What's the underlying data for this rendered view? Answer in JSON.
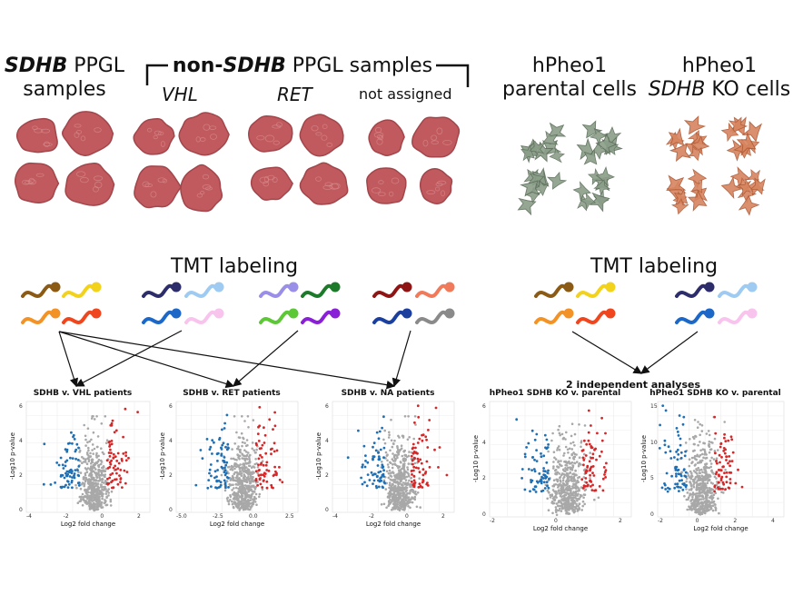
{
  "headers": {
    "sdhb_gene": "SDHB",
    "sdhb_rest1": " PPGL",
    "sdhb_line2": "samples",
    "non_prefix": "non-",
    "non_gene": "SDHB",
    "non_rest": " PPGL samples",
    "sub_vhl": "VHL",
    "sub_ret": "RET",
    "sub_na": "not assigned",
    "hpheo_parental_l1": "hPheo1",
    "hpheo_parental_l2": "parental cells",
    "hpheo_ko_l1": "hPheo1",
    "hpheo_ko_gene": "SDHB",
    "hpheo_ko_rest": " KO cells"
  },
  "tmt_left": "TMT labeling",
  "tmt_right": "TMT labeling",
  "independent_label": "2 independent analyses",
  "colors": {
    "tumor": "#c05a5e",
    "tumor_dark": "#a2464b",
    "cell_green": "#8a9e88",
    "cell_orange": "#d7855f",
    "down": "#1f6fb4",
    "up": "#d62728",
    "ns": "#a8a8a8"
  },
  "tags_left": [
    [
      "#8b5a14",
      "#f2d21b",
      "#2d2d6b",
      "#9fcbf2",
      "#9a8fe8",
      "#1c7a2a",
      "#8f1515",
      "#f07a5a"
    ],
    [
      "#f39325",
      "#f0461e",
      "#1c68c8",
      "#f8c4ee",
      "#5cc836",
      "#8a1fd8",
      "#1b3f9e",
      "#8a8a8a"
    ]
  ],
  "tags_right": [
    [
      "#8b5a14",
      "#f2d21b",
      "#2d2d6b",
      "#9fcbf2"
    ],
    [
      "#f39325",
      "#f0461e",
      "#1c68c8",
      "#f8c4ee"
    ]
  ],
  "plots": [
    {
      "title": "SDHB v. VHL patients",
      "xlabel": "Log2 fold change",
      "ylabel": "-Log10 p-value",
      "xticks": [
        "-4",
        "-2",
        "0",
        "2"
      ],
      "yticks": [
        "0",
        "2",
        "4",
        "6"
      ]
    },
    {
      "title": "SDHB v. RET patients",
      "xlabel": "Log2 fold change",
      "ylabel": "-Log10 p-value",
      "xticks": [
        "-5.0",
        "-2.5",
        "0.0",
        "2.5"
      ],
      "yticks": [
        "0",
        "2",
        "4",
        "6"
      ]
    },
    {
      "title": "SDHB v. NA patients",
      "xlabel": "Log2 fold change",
      "ylabel": "-Log10 p-value",
      "xticks": [
        "-4",
        "-2",
        "0",
        "2"
      ],
      "yticks": [
        "0",
        "2",
        "4",
        "6"
      ]
    },
    {
      "title": "hPheo1 SDHB KO v. parental",
      "xlabel": "Log2 fold change",
      "ylabel": "-Log10 p-value",
      "xticks": [
        "-2",
        "0",
        "2"
      ],
      "yticks": [
        "0",
        "2",
        "4",
        "6"
      ]
    },
    {
      "title": "hPheo1 SDHB KO v. parental",
      "xlabel": "Log2 fold change",
      "ylabel": "-Log10 p-value",
      "xticks": [
        "-2",
        "0",
        "2",
        "4"
      ],
      "yticks": [
        "0",
        "5",
        "10",
        "15"
      ]
    }
  ]
}
